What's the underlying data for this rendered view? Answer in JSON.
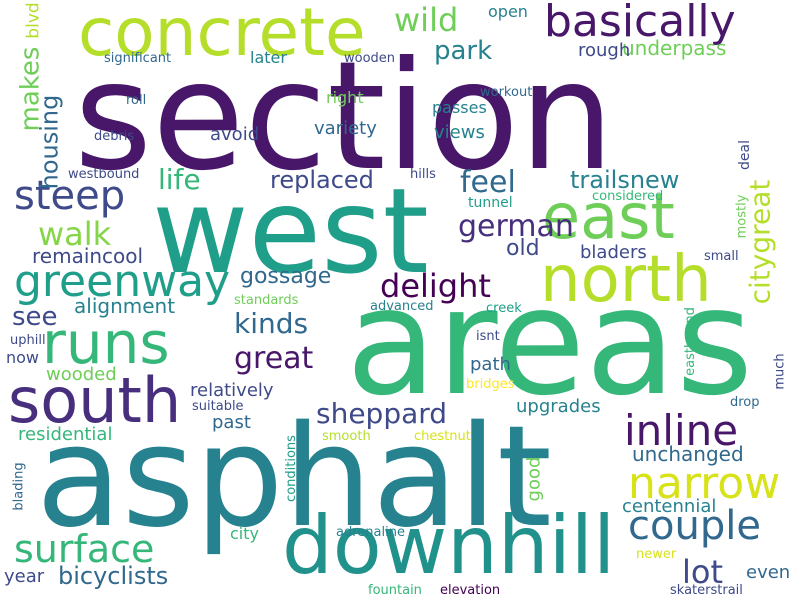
{
  "palette": {
    "dark_purple": "#481769",
    "purple": "#472f7d",
    "indigo": "#3e4a89",
    "blue": "#31688e",
    "teal": "#26828e",
    "sea": "#1f9e89",
    "green": "#35b779",
    "lime": "#6ece58",
    "yellow_green": "#b5de2b",
    "yellow": "#fde725"
  },
  "words": [
    {
      "text": "section",
      "color": "#481769"
    },
    {
      "text": "areas",
      "color": "#35b779"
    },
    {
      "text": "asphalt",
      "color": "#26828e"
    },
    {
      "text": "west",
      "color": "#1f9e89"
    },
    {
      "text": "concrete",
      "color": "#b5de2b"
    },
    {
      "text": "downhill",
      "color": "#21918c"
    },
    {
      "text": "north",
      "color": "#b5de2b"
    },
    {
      "text": "basically",
      "color": "#481769"
    },
    {
      "text": "south",
      "color": "#472f7d"
    },
    {
      "text": "east",
      "color": "#6ece58"
    },
    {
      "text": "runs",
      "color": "#35b779"
    },
    {
      "text": "greenway",
      "color": "#1f9e89"
    },
    {
      "text": "narrow",
      "color": "#d8e219"
    },
    {
      "text": "couple",
      "color": "#31688e"
    },
    {
      "text": "surface",
      "color": "#35b779"
    },
    {
      "text": "inline",
      "color": "#481769"
    },
    {
      "text": "steep",
      "color": "#3e4a89"
    },
    {
      "text": "delight",
      "color": "#440154"
    },
    {
      "text": "great",
      "color": "#481769"
    },
    {
      "text": "sheppard",
      "color": "#3e4a89"
    },
    {
      "text": "kinds",
      "color": "#31688e"
    },
    {
      "text": "wild",
      "color": "#6ece58"
    },
    {
      "text": "park",
      "color": "#26828e"
    },
    {
      "text": "walk",
      "color": "#86d549"
    },
    {
      "text": "life",
      "color": "#35b779"
    },
    {
      "text": "replaced",
      "color": "#3e4a89"
    },
    {
      "text": "feel",
      "color": "#31688e"
    },
    {
      "text": "german",
      "color": "#472f7d"
    },
    {
      "text": "trailsnew",
      "color": "#26828e"
    },
    {
      "text": "bicyclists",
      "color": "#31688e"
    },
    {
      "text": "lot",
      "color": "#3e4a89"
    },
    {
      "text": "gossage",
      "color": "#31688e"
    },
    {
      "text": "alignment",
      "color": "#26828e"
    },
    {
      "text": "see",
      "color": "#3e4a89"
    },
    {
      "text": "old",
      "color": "#3e4a89"
    },
    {
      "text": "remaincool",
      "color": "#3e4a89"
    },
    {
      "text": "underpass",
      "color": "#6ece58"
    },
    {
      "text": "rough",
      "color": "#3e4a89"
    },
    {
      "text": "unchanged",
      "color": "#31688e"
    },
    {
      "text": "centennial",
      "color": "#26828e"
    },
    {
      "text": "variety",
      "color": "#31688e"
    },
    {
      "text": "relatively",
      "color": "#3e4a89"
    },
    {
      "text": "upgrades",
      "color": "#26828e"
    },
    {
      "text": "wooded",
      "color": "#6ece58"
    },
    {
      "text": "path",
      "color": "#31688e"
    },
    {
      "text": "bladers",
      "color": "#3e4a89"
    },
    {
      "text": "past",
      "color": "#31688e"
    },
    {
      "text": "residential",
      "color": "#35b779"
    },
    {
      "text": "views",
      "color": "#26828e"
    },
    {
      "text": "avoid",
      "color": "#3e4a89"
    },
    {
      "text": "year",
      "color": "#3e4a89"
    },
    {
      "text": "even",
      "color": "#31688e"
    },
    {
      "text": "open",
      "color": "#26828e"
    },
    {
      "text": "later",
      "color": "#26828e"
    },
    {
      "text": "right",
      "color": "#6ece58"
    },
    {
      "text": "passes",
      "color": "#26828e"
    },
    {
      "text": "now",
      "color": "#3e4a89"
    },
    {
      "text": "tunnel",
      "color": "#1f9e89"
    },
    {
      "text": "city",
      "color": "#35b779"
    },
    {
      "text": "blvd",
      "color": "#b5de2b"
    },
    {
      "text": "significant",
      "color": "#31688e"
    },
    {
      "text": "wooden",
      "color": "#3e4a89"
    },
    {
      "text": "workout",
      "color": "#31688e"
    },
    {
      "text": "roll",
      "color": "#31688e"
    },
    {
      "text": "debris",
      "color": "#3e4a89"
    },
    {
      "text": "westbound",
      "color": "#3e4a89"
    },
    {
      "text": "hills",
      "color": "#3e4a89"
    },
    {
      "text": "considered",
      "color": "#35b779"
    },
    {
      "text": "small",
      "color": "#3e4a89"
    },
    {
      "text": "standards",
      "color": "#6ece58"
    },
    {
      "text": "advanced",
      "color": "#26828e"
    },
    {
      "text": "creek",
      "color": "#1f9e89"
    },
    {
      "text": "isnt",
      "color": "#3e4a89"
    },
    {
      "text": "uphill",
      "color": "#3e4a89"
    },
    {
      "text": "bridges",
      "color": "#fde725"
    },
    {
      "text": "suitable",
      "color": "#3e4a89"
    },
    {
      "text": "drop",
      "color": "#31688e"
    },
    {
      "text": "smooth",
      "color": "#b5de2b"
    },
    {
      "text": "chestnut",
      "color": "#d8e219"
    },
    {
      "text": "adrenaline",
      "color": "#26828e"
    },
    {
      "text": "newer",
      "color": "#d8e219"
    },
    {
      "text": "fountain",
      "color": "#35b779"
    },
    {
      "text": "elevation",
      "color": "#440154"
    },
    {
      "text": "skaterstrail",
      "color": "#3e4a89"
    },
    {
      "text": "citygreat",
      "color": "#b5de2b"
    },
    {
      "text": "makes",
      "color": "#6ece58"
    },
    {
      "text": "housing",
      "color": "#31688e"
    },
    {
      "text": "good",
      "color": "#6ece58"
    },
    {
      "text": "deal",
      "color": "#3e4a89"
    },
    {
      "text": "mostly",
      "color": "#6ece58"
    },
    {
      "text": "eastbound",
      "color": "#35b779"
    },
    {
      "text": "much",
      "color": "#3e4a89"
    },
    {
      "text": "conditions",
      "color": "#1f9e89"
    },
    {
      "text": "blading",
      "color": "#31688e"
    }
  ]
}
